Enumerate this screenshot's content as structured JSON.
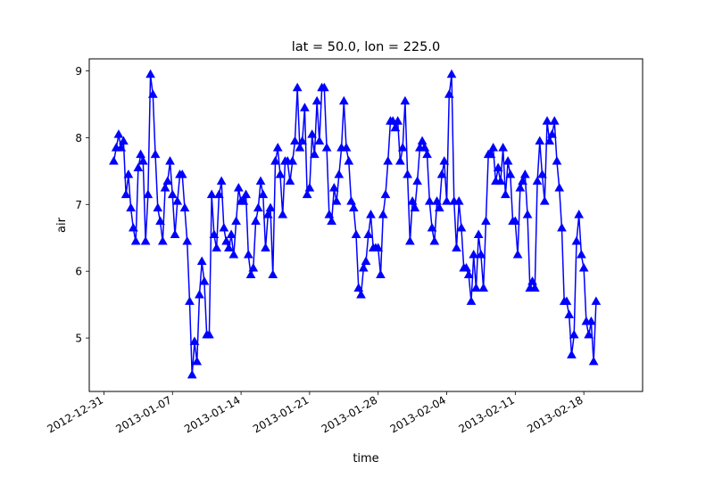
{
  "chart_data": {
    "type": "line",
    "title": "lat = 50.0, lon = 225.0",
    "xlabel": "time",
    "ylabel": "air",
    "x_start": "2013-01-01T00:00",
    "x_step_hours": 6,
    "xlim": [
      "2012-12-29T12:00",
      "2013-02-24T00:00"
    ],
    "ylim": [
      4.2,
      9.18
    ],
    "x_ticks": [
      "2012-12-31",
      "2013-01-07",
      "2013-01-14",
      "2013-01-21",
      "2013-01-28",
      "2013-02-04",
      "2013-02-11",
      "2013-02-18"
    ],
    "y_ticks": [
      5,
      6,
      7,
      8,
      9
    ],
    "line_color": "#0000ff",
    "marker": "triangle-up",
    "grid": false,
    "legend": "none",
    "series": [
      {
        "values": [
          7.64,
          7.84,
          8.04,
          7.84,
          7.94,
          7.14,
          7.44,
          6.94,
          6.64,
          6.44,
          7.54,
          7.74,
          7.64,
          6.44,
          7.14,
          8.94,
          8.64,
          7.74,
          6.94,
          6.74,
          6.44,
          7.24,
          7.34,
          7.64,
          7.14,
          6.54,
          7.04,
          7.44,
          7.44,
          6.94,
          6.44,
          5.54,
          4.44,
          4.94,
          4.64,
          5.64,
          6.14,
          5.84,
          5.04,
          5.04,
          7.14,
          6.54,
          6.34,
          7.14,
          7.34,
          6.64,
          6.44,
          6.34,
          6.54,
          6.24,
          6.74,
          7.24,
          7.04,
          7.04,
          7.14,
          6.24,
          5.94,
          6.04,
          6.74,
          6.94,
          7.34,
          7.14,
          6.34,
          6.84,
          6.94,
          5.94,
          7.64,
          7.84,
          7.44,
          6.84,
          7.64,
          7.64,
          7.34,
          7.64,
          7.94,
          8.74,
          7.84,
          7.94,
          8.44,
          7.14,
          7.24,
          8.04,
          7.74,
          8.54,
          7.94,
          8.74,
          8.74,
          7.84,
          6.84,
          6.74,
          7.24,
          7.04,
          7.44,
          7.84,
          8.54,
          7.84,
          7.64,
          7.04,
          6.94,
          6.54,
          5.74,
          5.64,
          6.04,
          6.14,
          6.54,
          6.84,
          6.34,
          6.34,
          6.34,
          5.94,
          6.84,
          7.14,
          7.64,
          8.24,
          8.24,
          8.14,
          8.24,
          7.64,
          7.84,
          8.54,
          7.44,
          6.44,
          7.04,
          6.94,
          7.34,
          7.84,
          7.94,
          7.84,
          7.74,
          7.04,
          6.64,
          6.44,
          7.04,
          6.94,
          7.44,
          7.64,
          7.04,
          8.64,
          8.94,
          7.04,
          6.34,
          7.04,
          6.64,
          6.04,
          6.04,
          5.94,
          5.54,
          6.24,
          5.74,
          6.54,
          6.24,
          5.74,
          6.74,
          7.74,
          7.74,
          7.84,
          7.34,
          7.54,
          7.34,
          7.84,
          7.14,
          7.64,
          7.44,
          6.74,
          6.74,
          6.24,
          7.24,
          7.34,
          7.44,
          6.84,
          5.74,
          5.84,
          5.74,
          7.34,
          7.94,
          7.44,
          7.04,
          8.24,
          7.94,
          8.04,
          8.24,
          7.64,
          7.24,
          6.64,
          5.54,
          5.54,
          5.34,
          4.74,
          5.04,
          6.44,
          6.84,
          6.24,
          6.04,
          5.24,
          5.04,
          5.24,
          4.64,
          5.54
        ]
      }
    ]
  }
}
